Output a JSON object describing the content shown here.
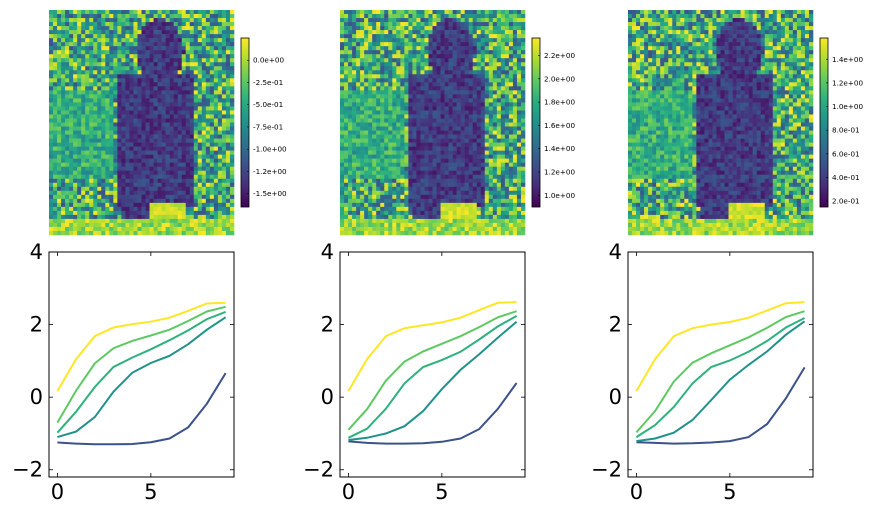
{
  "chart_data": [
    {
      "type": "heatmap",
      "description_colormap": "viridis",
      "colorbar": {
        "ticks": [
          "0.0e+00",
          "-2.5e-01",
          "-5.0e-01",
          "-7.5e-01",
          "-1.0e+00",
          "-1.2e+00",
          "-1.5e+00"
        ],
        "tick_values": [
          0.0,
          -0.25,
          -0.5,
          -0.75,
          -1.0,
          -1.25,
          -1.5
        ],
        "range": [
          -1.65,
          0.25
        ]
      }
    },
    {
      "type": "heatmap",
      "description_colormap": "viridis",
      "colorbar": {
        "ticks": [
          "2.2e+00",
          "2.0e+00",
          "1.8e+00",
          "1.6e+00",
          "1.4e+00",
          "1.2e+00",
          "1.0e+00"
        ],
        "tick_values": [
          2.2,
          2.0,
          1.8,
          1.6,
          1.4,
          1.2,
          1.0
        ],
        "range": [
          0.9,
          2.35
        ]
      }
    },
    {
      "type": "heatmap",
      "description_colormap": "viridis",
      "colorbar": {
        "ticks": [
          "1.4e+00",
          "1.2e+00",
          "1.0e+00",
          "8.0e-01",
          "6.0e-01",
          "4.0e-01",
          "2.0e-01"
        ],
        "tick_values": [
          1.4,
          1.2,
          1.0,
          0.8,
          0.6,
          0.4,
          0.2
        ],
        "range": [
          0.15,
          1.58
        ]
      }
    },
    {
      "type": "line",
      "xlim": [
        -0.45,
        9.45
      ],
      "ylim": [
        -2.2,
        4.0
      ],
      "xticks": [
        "0",
        "5"
      ],
      "xtick_values": [
        0,
        5
      ],
      "yticks": [
        "−2",
        "0",
        "2",
        "4"
      ],
      "ytick_values": [
        -2,
        0,
        2,
        4
      ],
      "x": [
        0,
        1,
        2,
        3,
        4,
        5,
        6,
        7,
        8,
        9
      ],
      "series": [
        {
          "color": "#3b528b",
          "values": [
            -1.25,
            -1.28,
            -1.3,
            -1.3,
            -1.29,
            -1.24,
            -1.14,
            -0.83,
            -0.18,
            0.66
          ]
        },
        {
          "color": "#21918c",
          "values": [
            -1.1,
            -0.95,
            -0.55,
            0.15,
            0.67,
            0.94,
            1.14,
            1.46,
            1.86,
            2.2
          ]
        },
        {
          "color": "#2db27d",
          "values": [
            -0.98,
            -0.4,
            0.28,
            0.83,
            1.09,
            1.32,
            1.57,
            1.84,
            2.15,
            2.35
          ]
        },
        {
          "color": "#5ec962",
          "values": [
            -0.7,
            0.18,
            0.93,
            1.35,
            1.55,
            1.7,
            1.86,
            2.1,
            2.36,
            2.49
          ]
        },
        {
          "color": "#fde725",
          "values": [
            0.17,
            1.05,
            1.68,
            1.92,
            2.01,
            2.08,
            2.19,
            2.38,
            2.58,
            2.6
          ]
        }
      ]
    },
    {
      "type": "line",
      "xlim": [
        -0.45,
        9.45
      ],
      "ylim": [
        -2.2,
        4.0
      ],
      "xticks": [
        "0",
        "5"
      ],
      "xtick_values": [
        0,
        5
      ],
      "yticks": [
        "−2",
        "0",
        "2",
        "4"
      ],
      "ytick_values": [
        -2,
        0,
        2,
        4
      ],
      "x": [
        0,
        1,
        2,
        3,
        4,
        5,
        6,
        7,
        8,
        9
      ],
      "series": [
        {
          "color": "#3b528b",
          "values": [
            -1.22,
            -1.26,
            -1.28,
            -1.28,
            -1.27,
            -1.23,
            -1.14,
            -0.88,
            -0.32,
            0.39
          ]
        },
        {
          "color": "#21918c",
          "values": [
            -1.18,
            -1.12,
            -1.0,
            -0.8,
            -0.38,
            0.22,
            0.75,
            1.18,
            1.64,
            2.08
          ]
        },
        {
          "color": "#2db27d",
          "values": [
            -1.12,
            -0.87,
            -0.32,
            0.38,
            0.83,
            1.02,
            1.25,
            1.59,
            1.95,
            2.24
          ]
        },
        {
          "color": "#5ec962",
          "values": [
            -0.9,
            -0.33,
            0.45,
            0.98,
            1.26,
            1.47,
            1.68,
            1.93,
            2.2,
            2.37
          ]
        },
        {
          "color": "#fde725",
          "values": [
            0.17,
            1.05,
            1.68,
            1.9,
            1.98,
            2.06,
            2.19,
            2.4,
            2.6,
            2.62
          ]
        }
      ]
    },
    {
      "type": "line",
      "xlim": [
        -0.45,
        9.45
      ],
      "ylim": [
        -2.2,
        4.0
      ],
      "xticks": [
        "0",
        "5"
      ],
      "xtick_values": [
        0,
        5
      ],
      "yticks": [
        "−2",
        "0",
        "2",
        "4"
      ],
      "ytick_values": [
        -2,
        0,
        2,
        4
      ],
      "x": [
        0,
        1,
        2,
        3,
        4,
        5,
        6,
        7,
        8,
        9
      ],
      "series": [
        {
          "color": "#3b528b",
          "values": [
            -1.24,
            -1.26,
            -1.28,
            -1.27,
            -1.25,
            -1.21,
            -1.1,
            -0.74,
            -0.03,
            0.82
          ]
        },
        {
          "color": "#21918c",
          "values": [
            -1.21,
            -1.14,
            -0.98,
            -0.63,
            -0.08,
            0.48,
            0.89,
            1.26,
            1.72,
            2.09
          ]
        },
        {
          "color": "#2db27d",
          "values": [
            -1.1,
            -0.77,
            -0.27,
            0.38,
            0.83,
            1.01,
            1.25,
            1.55,
            1.92,
            2.18
          ]
        },
        {
          "color": "#5ec962",
          "values": [
            -0.97,
            -0.38,
            0.43,
            0.95,
            1.21,
            1.43,
            1.65,
            1.91,
            2.21,
            2.37
          ]
        },
        {
          "color": "#fde725",
          "values": [
            0.17,
            1.05,
            1.68,
            1.9,
            2.0,
            2.07,
            2.19,
            2.39,
            2.59,
            2.62
          ]
        }
      ]
    }
  ]
}
